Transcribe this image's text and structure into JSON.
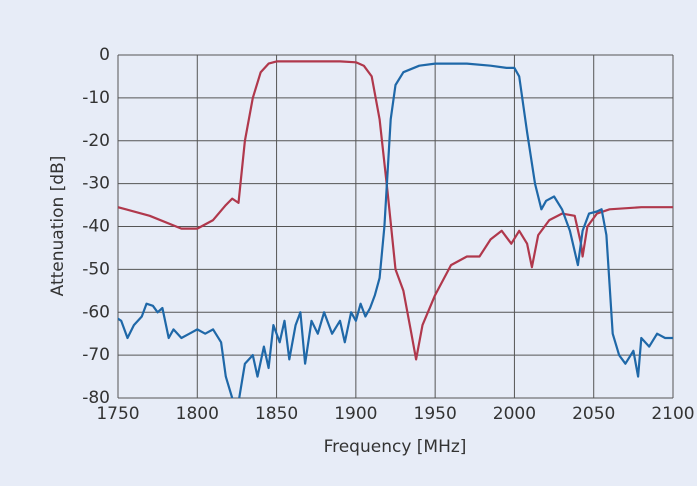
{
  "chart_data": {
    "type": "line",
    "xlabel": "Frequency [MHz]",
    "ylabel": "Attenuation [dB]",
    "xlim": [
      1750,
      2100
    ],
    "ylim": [
      -80,
      0
    ],
    "xticks": [
      1750,
      1800,
      1850,
      1900,
      1950,
      2000,
      2050,
      2100
    ],
    "yticks": [
      0,
      -10,
      -20,
      -30,
      -40,
      -50,
      -60,
      -70,
      -80
    ],
    "grid": true,
    "series": [
      {
        "color": "#b0384c",
        "x": [
          1750,
          1770,
          1790,
          1800,
          1810,
          1818,
          1822,
          1826,
          1830,
          1835,
          1840,
          1845,
          1850,
          1870,
          1890,
          1900,
          1905,
          1910,
          1915,
          1920,
          1925,
          1930,
          1935,
          1938,
          1942,
          1950,
          1960,
          1970,
          1978,
          1985,
          1992,
          1998,
          2003,
          2008,
          2011,
          2015,
          2022,
          2030,
          2038,
          2042,
          2043,
          2046,
          2052,
          2060,
          2080,
          2100
        ],
        "values": [
          -35.5,
          -37.5,
          -40.5,
          -40.5,
          -38.5,
          -35,
          -33.5,
          -34.5,
          -20,
          -10,
          -4,
          -2,
          -1.5,
          -1.5,
          -1.5,
          -1.7,
          -2.5,
          -5,
          -15,
          -32,
          -50,
          -55,
          -65,
          -71,
          -63,
          -56,
          -49,
          -47,
          -47,
          -43,
          -41,
          -44,
          -41,
          -44,
          -49.5,
          -42,
          -38.5,
          -37,
          -37.5,
          -44,
          -47,
          -40,
          -37,
          -36,
          -35.5,
          -35.5
        ]
      },
      {
        "color": "#1f68a8",
        "x": [
          1748,
          1752,
          1756,
          1760,
          1765,
          1768,
          1772,
          1775,
          1778,
          1782,
          1785,
          1790,
          1795,
          1800,
          1805,
          1810,
          1815,
          1818,
          1822,
          1826,
          1830,
          1835,
          1838,
          1842,
          1845,
          1848,
          1852,
          1855,
          1858,
          1862,
          1865,
          1868,
          1872,
          1876,
          1880,
          1885,
          1890,
          1893,
          1897,
          1900,
          1903,
          1906,
          1909,
          1912,
          1915,
          1918,
          1922,
          1925,
          1930,
          1940,
          1950,
          1970,
          1985,
          1995,
          2000,
          2003,
          2008,
          2013,
          2017,
          2020,
          2025,
          2030,
          2035,
          2040,
          2043,
          2047,
          2052,
          2055,
          2058,
          2062,
          2066,
          2070,
          2075,
          2078,
          2080,
          2085,
          2090,
          2095,
          2100
        ],
        "values": [
          -61,
          -62,
          -66,
          -63,
          -61,
          -58,
          -58.5,
          -60,
          -59,
          -66,
          -64,
          -66,
          -65,
          -64,
          -65,
          -64,
          -67,
          -75,
          -80,
          -81,
          -72,
          -70,
          -75,
          -68,
          -73,
          -63,
          -67,
          -62,
          -71,
          -63,
          -60,
          -72,
          -62,
          -65,
          -60,
          -65,
          -62,
          -67,
          -60,
          -62,
          -58,
          -61,
          -59,
          -56,
          -52,
          -40,
          -15,
          -7,
          -4,
          -2.5,
          -2,
          -2,
          -2.5,
          -3,
          -3,
          -5,
          -18,
          -30,
          -36,
          -34,
          -33,
          -36,
          -41,
          -49,
          -41,
          -37,
          -36.5,
          -36,
          -42,
          -65,
          -70,
          -72,
          -69,
          -75,
          -66,
          -68,
          -65,
          -66,
          -66
        ]
      }
    ]
  }
}
